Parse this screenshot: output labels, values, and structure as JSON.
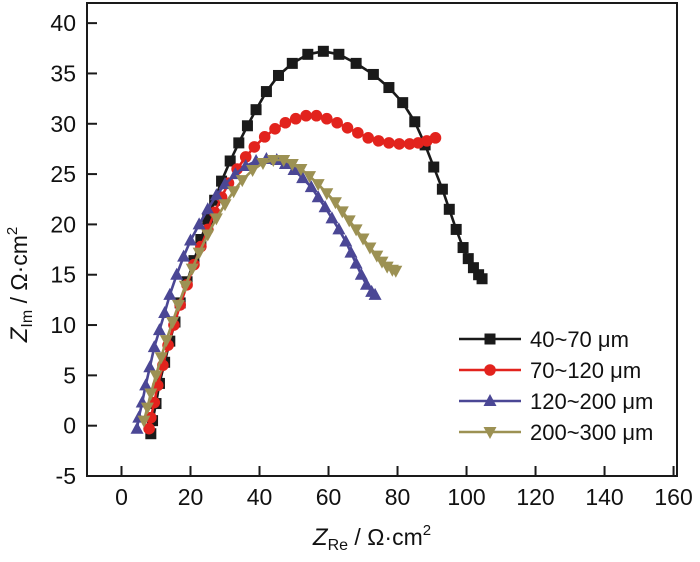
{
  "figure": {
    "background": "#ffffff",
    "frame_color": "#1a1a1a"
  },
  "chart_data": {
    "type": "scatter",
    "title": "",
    "xlabel": {
      "symbol": "Z",
      "subscript": "Re",
      "separator": " / ",
      "unit": "Ω·cm",
      "exponent": "2"
    },
    "ylabel": {
      "symbol": "Z",
      "subscript": "Im",
      "separator": " / ",
      "unit": "Ω·cm",
      "exponent": "2"
    },
    "xlim": [
      -10,
      161
    ],
    "ylim": [
      -5,
      42
    ],
    "xticks": [
      0,
      20,
      40,
      60,
      80,
      100,
      120,
      140,
      160
    ],
    "yticks": [
      -5,
      0,
      5,
      10,
      15,
      20,
      25,
      30,
      35,
      40
    ],
    "grid": false,
    "legend_position": "lower right",
    "series": [
      {
        "name": "40~70 μm",
        "color": "#1a1a1a",
        "marker": "square",
        "points": [
          [
            8.5,
            -0.8
          ],
          [
            9,
            0.5
          ],
          [
            10,
            2.2
          ],
          [
            11,
            4.2
          ],
          [
            12.5,
            6.3
          ],
          [
            14,
            8.4
          ],
          [
            15.5,
            10.3
          ],
          [
            17,
            12.2
          ],
          [
            19,
            14.3
          ],
          [
            21,
            16.4
          ],
          [
            23,
            18.5
          ],
          [
            25,
            20.5
          ],
          [
            27,
            22.4
          ],
          [
            29,
            24.3
          ],
          [
            31.5,
            26.3
          ],
          [
            34,
            28.1
          ],
          [
            36.5,
            29.8
          ],
          [
            39,
            31.4
          ],
          [
            42,
            33.2
          ],
          [
            45.5,
            34.8
          ],
          [
            49.5,
            36
          ],
          [
            54,
            36.9
          ],
          [
            58.5,
            37.2
          ],
          [
            63,
            36.9
          ],
          [
            68,
            36
          ],
          [
            73,
            34.9
          ],
          [
            77.5,
            33.6
          ],
          [
            81.5,
            32.1
          ],
          [
            85,
            30.2
          ],
          [
            88,
            27.9
          ],
          [
            90.5,
            25.7
          ],
          [
            93,
            23.5
          ],
          [
            95,
            21.5
          ],
          [
            97,
            19.5
          ],
          [
            99,
            17.7
          ],
          [
            100.5,
            16.6
          ],
          [
            102,
            15.7
          ],
          [
            103.5,
            15
          ],
          [
            104.5,
            14.6
          ]
        ]
      },
      {
        "name": "70~120 μm",
        "color": "#e2231d",
        "marker": "circle",
        "points": [
          [
            8,
            -0.3
          ],
          [
            8.5,
            0.8
          ],
          [
            9.5,
            2.3
          ],
          [
            10.5,
            4
          ],
          [
            12,
            6
          ],
          [
            13.5,
            8
          ],
          [
            15.2,
            10
          ],
          [
            17,
            12
          ],
          [
            19,
            14
          ],
          [
            21,
            16
          ],
          [
            23,
            17.8
          ],
          [
            25,
            19.5
          ],
          [
            27,
            21.2
          ],
          [
            29,
            22.7
          ],
          [
            31,
            24.1
          ],
          [
            33.5,
            25.5
          ],
          [
            36,
            26.7
          ],
          [
            38.5,
            27.7
          ],
          [
            41.5,
            28.7
          ],
          [
            44.5,
            29.5
          ],
          [
            47.5,
            30.1
          ],
          [
            50.5,
            30.5
          ],
          [
            53.5,
            30.8
          ],
          [
            56.5,
            30.8
          ],
          [
            59.5,
            30.5
          ],
          [
            62.5,
            30.1
          ],
          [
            65.5,
            29.6
          ],
          [
            68.5,
            29.1
          ],
          [
            71.5,
            28.6
          ],
          [
            74.5,
            28.3
          ],
          [
            77.5,
            28.1
          ],
          [
            80.5,
            28
          ],
          [
            83.5,
            28
          ],
          [
            86,
            28.1
          ],
          [
            88.5,
            28.3
          ],
          [
            91,
            28.6
          ]
        ]
      },
      {
        "name": "120~200 μm",
        "color": "#4b4795",
        "marker": "triangle-up",
        "points": [
          [
            4.5,
            -0.3
          ],
          [
            5,
            0.8
          ],
          [
            6,
            2.3
          ],
          [
            7,
            4
          ],
          [
            8.2,
            5.8
          ],
          [
            9.5,
            7.8
          ],
          [
            11,
            9.5
          ],
          [
            12.5,
            11.2
          ],
          [
            14,
            13
          ],
          [
            16,
            15
          ],
          [
            18,
            16.8
          ],
          [
            20,
            18.4
          ],
          [
            22.5,
            20
          ],
          [
            25,
            21.5
          ],
          [
            27.5,
            22.9
          ],
          [
            30,
            24
          ],
          [
            33,
            25
          ],
          [
            36,
            25.8
          ],
          [
            39,
            26.3
          ],
          [
            42,
            26.5
          ],
          [
            45,
            26.4
          ],
          [
            47.5,
            26
          ],
          [
            50,
            25.4
          ],
          [
            52.5,
            24.6
          ],
          [
            55,
            23.7
          ],
          [
            57,
            22.7
          ],
          [
            59,
            21.7
          ],
          [
            61,
            20.6
          ],
          [
            63,
            19.5
          ],
          [
            65,
            18.3
          ],
          [
            66.5,
            17.2
          ],
          [
            68,
            16.1
          ],
          [
            69.5,
            15
          ],
          [
            71,
            14
          ],
          [
            72.5,
            13.3
          ],
          [
            73.5,
            13
          ]
        ]
      },
      {
        "name": "200~300 μm",
        "color": "#9c9153",
        "marker": "triangle-down",
        "points": [
          [
            6.5,
            0.5
          ],
          [
            7.5,
            1.8
          ],
          [
            8.5,
            3.2
          ],
          [
            10,
            5
          ],
          [
            11.5,
            6.8
          ],
          [
            13,
            8.5
          ],
          [
            14.8,
            10.3
          ],
          [
            16.5,
            12
          ],
          [
            18.5,
            13.9
          ],
          [
            20.5,
            15.6
          ],
          [
            22.5,
            17.2
          ],
          [
            25,
            19
          ],
          [
            27.5,
            20.6
          ],
          [
            30,
            22
          ],
          [
            32.5,
            23.3
          ],
          [
            35,
            24.4
          ],
          [
            38,
            25.4
          ],
          [
            41,
            26.1
          ],
          [
            44,
            26.4
          ],
          [
            47,
            26.4
          ],
          [
            49.5,
            26
          ],
          [
            52,
            25.5
          ],
          [
            54.5,
            24.8
          ],
          [
            57,
            24
          ],
          [
            59.5,
            23.1
          ],
          [
            62,
            22.2
          ],
          [
            64,
            21.3
          ],
          [
            66,
            20.4
          ],
          [
            68,
            19.5
          ],
          [
            70,
            18.6
          ],
          [
            72,
            17.7
          ],
          [
            74,
            16.9
          ],
          [
            75.5,
            16.3
          ],
          [
            77,
            15.8
          ],
          [
            78.5,
            15.5
          ],
          [
            79.5,
            15.4
          ]
        ]
      }
    ]
  }
}
